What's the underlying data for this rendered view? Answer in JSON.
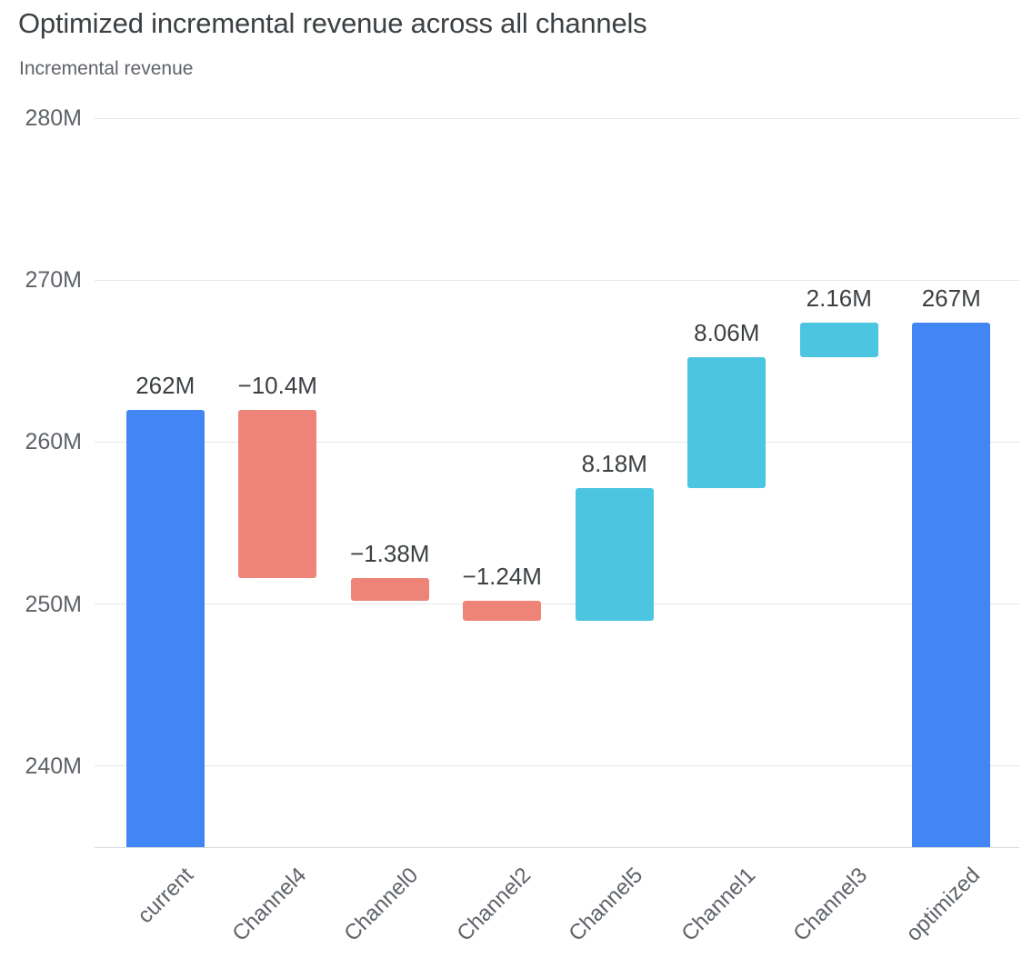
{
  "chart_data": {
    "type": "bar",
    "subtype": "waterfall",
    "title": "Optimized incremental revenue across all channels",
    "subtitle": "Incremental revenue",
    "units": "M",
    "categories": [
      "current",
      "Channel4",
      "Channel0",
      "Channel2",
      "Channel5",
      "Channel1",
      "Channel3",
      "optimized"
    ],
    "bars": [
      {
        "category": "current",
        "kind": "total",
        "value": 262.0,
        "cumulative_end": 262.0,
        "label": "262M"
      },
      {
        "category": "Channel4",
        "kind": "decrease",
        "value": -10.4,
        "cumulative_end": 251.6,
        "label": "−10.4M"
      },
      {
        "category": "Channel0",
        "kind": "decrease",
        "value": -1.38,
        "cumulative_end": 250.22,
        "label": "−1.38M"
      },
      {
        "category": "Channel2",
        "kind": "decrease",
        "value": -1.24,
        "cumulative_end": 248.98,
        "label": "−1.24M"
      },
      {
        "category": "Channel5",
        "kind": "increase",
        "value": 8.18,
        "cumulative_end": 257.16,
        "label": "8.18M"
      },
      {
        "category": "Channel1",
        "kind": "increase",
        "value": 8.06,
        "cumulative_end": 265.22,
        "label": "8.06M"
      },
      {
        "category": "Channel3",
        "kind": "increase",
        "value": 2.16,
        "cumulative_end": 267.38,
        "label": "2.16M"
      },
      {
        "category": "optimized",
        "kind": "total",
        "value": 267.38,
        "cumulative_end": 267.38,
        "label": "267M"
      }
    ],
    "y_axis": {
      "min": 235,
      "max": 280,
      "ticks": [
        {
          "value": 240,
          "label": "240M"
        },
        {
          "value": 250,
          "label": "250M"
        },
        {
          "value": 260,
          "label": "260M"
        },
        {
          "value": 270,
          "label": "270M"
        },
        {
          "value": 280,
          "label": "280M"
        }
      ]
    },
    "grid": true,
    "legend": "none",
    "colors": {
      "total": "#4285f4",
      "increase": "#4bc5e0",
      "decrease": "#ee8377"
    }
  }
}
